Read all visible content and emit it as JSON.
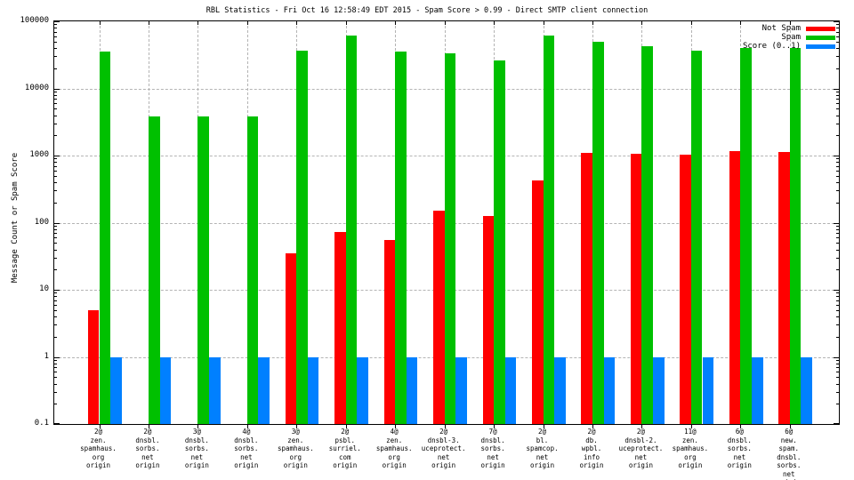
{
  "title": "RBL Statistics - Fri Oct 16 12:58:49 EDT 2015 - Spam Score > 0.99 - Direct SMTP client connection",
  "colors": {
    "not_spam": "#ff0000",
    "spam": "#00c000",
    "score": "#0080ff",
    "grid": "#b4b4b4",
    "border": "#000000",
    "background": "#ffffff"
  },
  "chart_data": {
    "type": "bar",
    "title": "RBL Statistics - Fri Oct 16 12:58:49 EDT 2015 - Spam Score > 0.99 - Direct SMTP client connection",
    "xlabel": "",
    "ylabel": "Message Count or Spam Score",
    "yscale": "log",
    "ylim": [
      0.1,
      100000
    ],
    "ytick_labels": [
      "100000",
      "10000",
      "1000",
      "100",
      "10",
      "1",
      "0.1"
    ],
    "grid": true,
    "legend_position": "top-right-inside",
    "categories": [
      [
        "2@",
        "zen.",
        "spamhaus.",
        "org",
        "origin"
      ],
      [
        "2@",
        "dnsbl.",
        "sorbs.",
        "net",
        "origin"
      ],
      [
        "3@",
        "dnsbl.",
        "sorbs.",
        "net",
        "origin"
      ],
      [
        "4@",
        "dnsbl.",
        "sorbs.",
        "net",
        "origin"
      ],
      [
        "3@",
        "zen.",
        "spamhaus.",
        "org",
        "origin"
      ],
      [
        "2@",
        "psbl.",
        "surriel.",
        "com",
        "origin"
      ],
      [
        "4@",
        "zen.",
        "spamhaus.",
        "org",
        "origin"
      ],
      [
        "2@",
        "dnsbl-3.",
        "uceprotect.",
        "net",
        "origin"
      ],
      [
        "7@",
        "dnsbl.",
        "sorbs.",
        "net",
        "origin"
      ],
      [
        "2@",
        "bl.",
        "spamcop.",
        "net",
        "origin"
      ],
      [
        "2@",
        "db.",
        "wpbl.",
        "info",
        "origin"
      ],
      [
        "2@",
        "dnsbl-2.",
        "uceprotect.",
        "net",
        "origin"
      ],
      [
        "11@",
        "zen.",
        "spamhaus.",
        "org",
        "origin"
      ],
      [
        "6@",
        "dnsbl.",
        "sorbs.",
        "net",
        "origin"
      ],
      [
        "6@",
        "new.",
        "spam.",
        "dnsbl.",
        "sorbs.",
        "net",
        "origin"
      ]
    ],
    "series": [
      {
        "name": "Not Spam",
        "color": "#ff0000",
        "values": [
          5,
          0,
          0,
          0,
          35,
          73,
          55,
          150,
          125,
          420,
          1080,
          1060,
          1030,
          1150,
          1120
        ]
      },
      {
        "name": "Spam",
        "color": "#00c000",
        "values": [
          35000,
          3800,
          3800,
          3800,
          36000,
          62000,
          35000,
          33000,
          26000,
          62000,
          49000,
          42000,
          36000,
          40000,
          40000
        ]
      },
      {
        "name": "Score (0..1)",
        "color": "#0080ff",
        "values": [
          1,
          1,
          1,
          1,
          1,
          1,
          1,
          1,
          1,
          1,
          1,
          1,
          1,
          1,
          1
        ]
      }
    ]
  }
}
